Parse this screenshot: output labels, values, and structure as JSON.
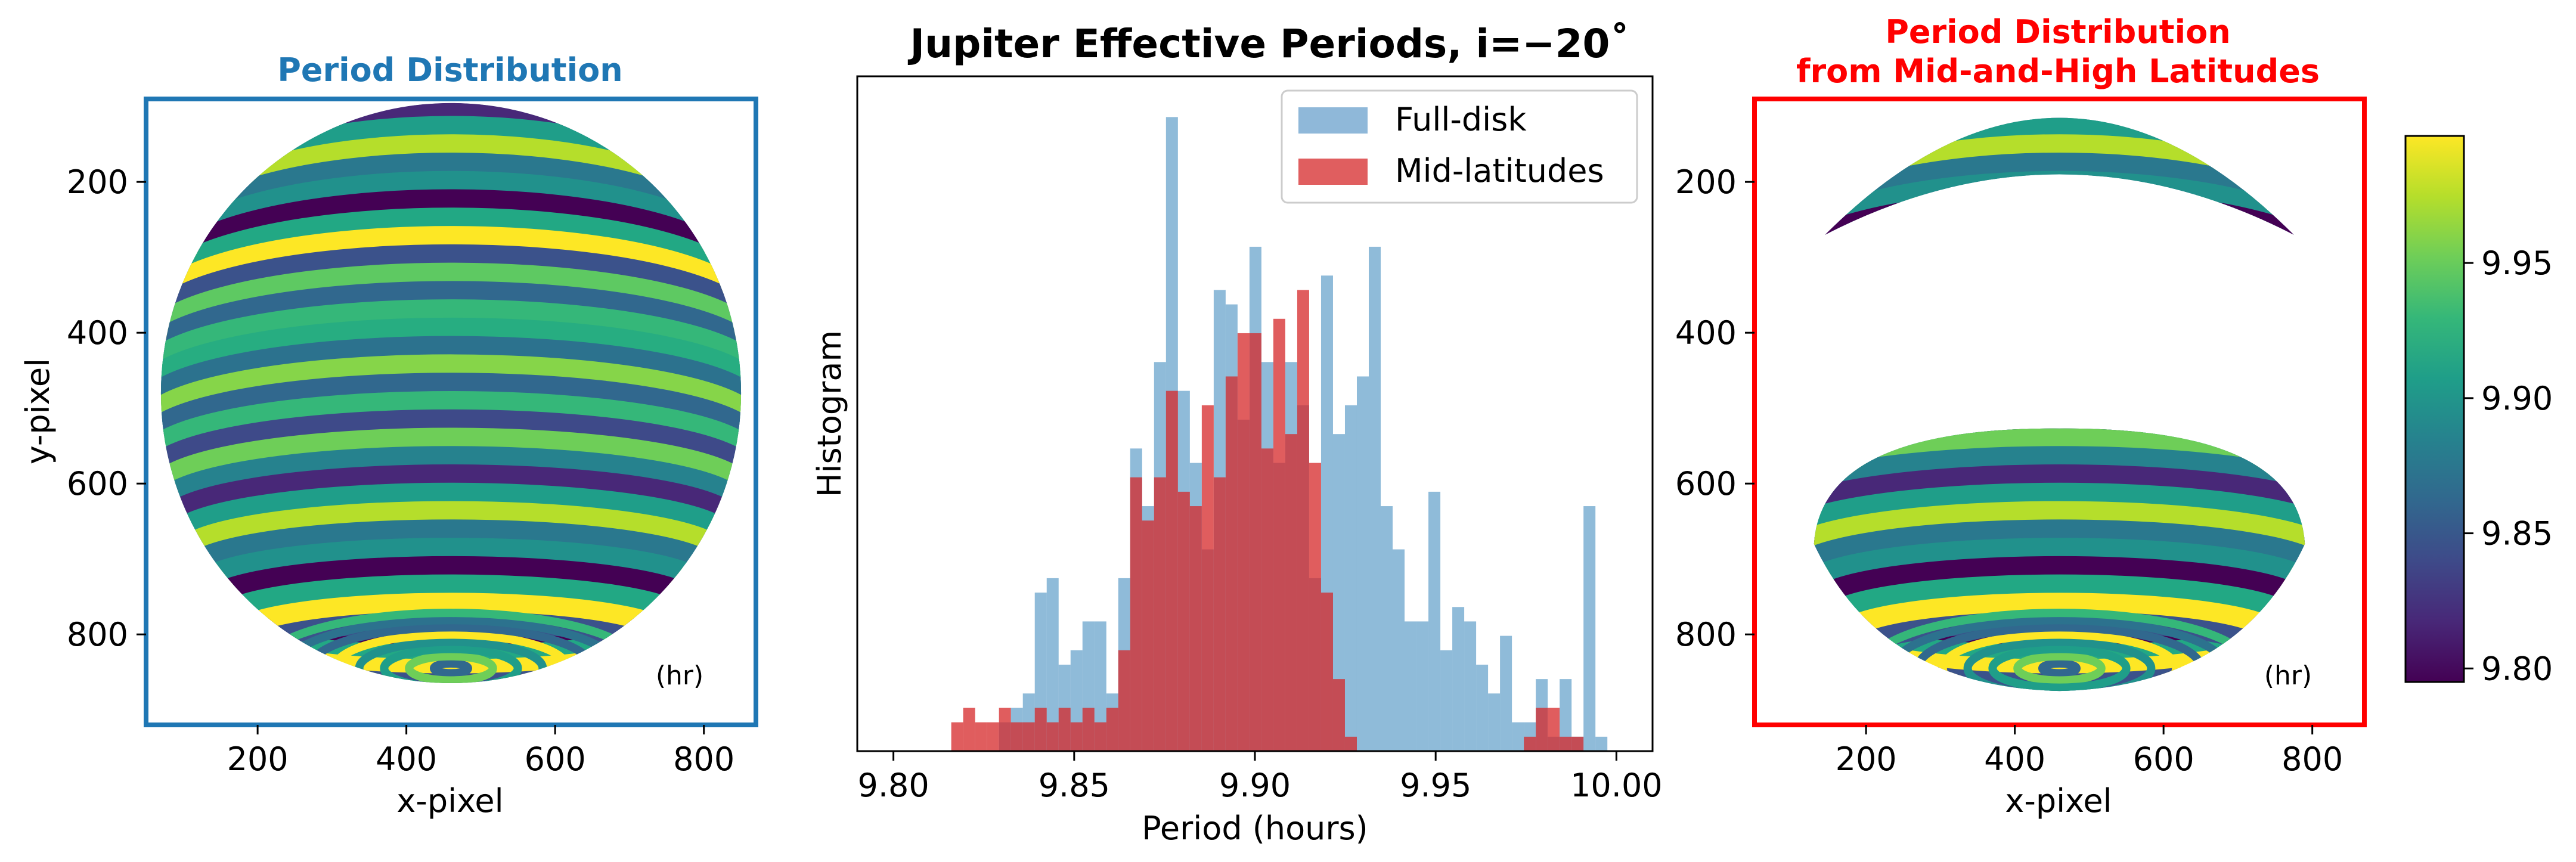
{
  "chart_data": [
    {
      "type": "heatmap",
      "title": "Period Distribution",
      "title_color": "#1f77b4",
      "frame_color": "#1f77b4",
      "xlabel": "x-pixel",
      "ylabel": "y-pixel",
      "xticks": [
        "200",
        "400",
        "600",
        "800"
      ],
      "yticks": [
        "200",
        "400",
        "600",
        "800"
      ],
      "xlim": [
        50,
        870
      ],
      "ylim": [
        920,
        90
      ],
      "annotation": "(hr)",
      "disk": {
        "cx": 460,
        "cy": 480,
        "r": 390
      },
      "clip": "full",
      "band_colors": [
        "#31688e",
        "#35b779",
        "#3e4a89",
        "#6ece58",
        "#26828e",
        "#482878",
        "#1f9e89",
        "#b5de2b",
        "#2a788e",
        "#21918c",
        "#440154",
        "#22a884",
        "#fde725",
        "#3b528b",
        "#5ec962",
        "#31688e",
        "#35b779",
        "#27ad81",
        "#2c728e",
        "#86d549"
      ]
    },
    {
      "type": "bar",
      "title": "Jupiter Effective Periods, i=−20˚",
      "xlabel": "Period (hours)",
      "ylabel": "Histogram",
      "xlim": [
        9.79,
        10.01
      ],
      "xticks": [
        "9.80",
        "9.85",
        "9.90",
        "9.95",
        "10.00"
      ],
      "legend": "top-right",
      "bin_start": 9.816,
      "bin_width": 0.0033,
      "series": [
        {
          "name": "Full-disk",
          "color": "#1f77b4",
          "opacity": 0.5,
          "values": [
            0,
            0,
            0,
            0,
            2,
            3,
            4,
            11,
            12,
            6,
            7,
            9,
            9,
            4,
            12,
            21,
            17,
            27,
            44,
            25,
            20,
            14,
            32,
            31,
            23,
            35,
            27,
            20,
            27,
            24,
            12,
            33,
            22,
            24,
            26,
            35,
            17,
            14,
            9,
            9,
            18,
            7,
            10,
            9,
            6,
            4,
            8,
            2,
            2,
            5,
            1,
            5,
            1,
            17,
            1
          ]
        },
        {
          "name": "Mid-latitudes",
          "color": "#d62728",
          "opacity": 0.75,
          "values": [
            2,
            3,
            2,
            2,
            3,
            2,
            2,
            3,
            2,
            3,
            2,
            3,
            2,
            3,
            7,
            19,
            16,
            19,
            25,
            18,
            17,
            24,
            19,
            26,
            29,
            29,
            21,
            30,
            22,
            32,
            20,
            11,
            5,
            1,
            0,
            0,
            0,
            0,
            0,
            0,
            0,
            0,
            0,
            0,
            0,
            0,
            0,
            0,
            1,
            3,
            3,
            1,
            1,
            0,
            0
          ]
        }
      ]
    },
    {
      "type": "heatmap",
      "title_lines": [
        "Period Distribution",
        "from Mid-and-High Latitudes"
      ],
      "title_color": "#ff0000",
      "frame_color": "#ff0000",
      "xlabel": "x-pixel",
      "ylabel": "",
      "xticks": [
        "200",
        "400",
        "600",
        "800"
      ],
      "yticks": [
        "200",
        "400",
        "600",
        "800"
      ],
      "xlim": [
        50,
        870
      ],
      "ylim": [
        920,
        90
      ],
      "annotation": "(hr)",
      "disk": {
        "cx": 460,
        "cy": 480,
        "r": 390
      },
      "clip": "mid-high",
      "band_colors": [
        "#31688e",
        "#35b779",
        "#3e4a89",
        "#6ece58",
        "#26828e",
        "#482878",
        "#1f9e89",
        "#b5de2b",
        "#2a788e",
        "#21918c",
        "#440154",
        "#22a884",
        "#fde725",
        "#3b528b",
        "#5ec962",
        "#31688e",
        "#35b779",
        "#27ad81",
        "#2c728e",
        "#86d549"
      ]
    },
    {
      "type": "colorbar",
      "ticks": [
        "9.80",
        "9.85",
        "9.90",
        "9.95"
      ],
      "range": [
        9.795,
        9.997
      ],
      "tick_values": [
        9.8,
        9.85,
        9.9,
        9.95
      ],
      "colormap": [
        "#440154",
        "#482878",
        "#3e4a89",
        "#31688e",
        "#26828e",
        "#1f9e89",
        "#35b779",
        "#6ece58",
        "#b5de2b",
        "#fde725"
      ]
    }
  ]
}
